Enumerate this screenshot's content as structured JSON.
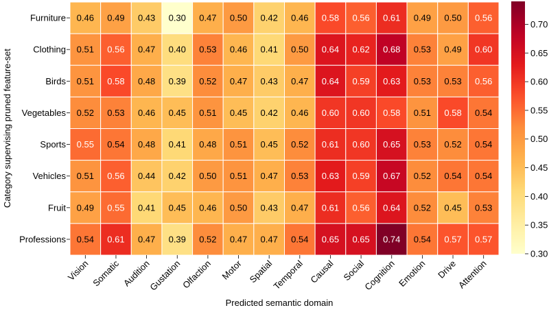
{
  "chart_data": {
    "type": "heatmap",
    "title": "",
    "xlabel": "Predicted semantic domain",
    "ylabel": "Category supervising pruned feature-set",
    "x_categories": [
      "Vision",
      "Somatic",
      "Audition",
      "Gustation",
      "Olfaction",
      "Motor",
      "Spatial",
      "Temporal",
      "Causal",
      "Social",
      "Cognition",
      "Emotion",
      "Drive",
      "Attention"
    ],
    "y_categories": [
      "Furniture",
      "Clothing",
      "Birds",
      "Vegetables",
      "Sports",
      "Vehicles",
      "Fruit",
      "Professions"
    ],
    "values": [
      [
        0.46,
        0.49,
        0.43,
        0.3,
        0.47,
        0.5,
        0.42,
        0.46,
        0.58,
        0.56,
        0.61,
        0.49,
        0.5,
        0.56
      ],
      [
        0.51,
        0.56,
        0.47,
        0.4,
        0.53,
        0.46,
        0.41,
        0.5,
        0.64,
        0.62,
        0.68,
        0.53,
        0.49,
        0.6
      ],
      [
        0.51,
        0.58,
        0.48,
        0.39,
        0.52,
        0.47,
        0.43,
        0.47,
        0.64,
        0.59,
        0.63,
        0.53,
        0.53,
        0.56
      ],
      [
        0.52,
        0.53,
        0.46,
        0.45,
        0.51,
        0.45,
        0.42,
        0.46,
        0.6,
        0.6,
        0.58,
        0.51,
        0.58,
        0.54
      ],
      [
        0.55,
        0.54,
        0.48,
        0.41,
        0.48,
        0.51,
        0.45,
        0.52,
        0.61,
        0.6,
        0.65,
        0.53,
        0.52,
        0.54
      ],
      [
        0.51,
        0.56,
        0.44,
        0.42,
        0.5,
        0.51,
        0.47,
        0.53,
        0.63,
        0.59,
        0.67,
        0.52,
        0.54,
        0.54
      ],
      [
        0.49,
        0.55,
        0.41,
        0.45,
        0.46,
        0.5,
        0.43,
        0.47,
        0.61,
        0.56,
        0.64,
        0.52,
        0.45,
        0.53
      ],
      [
        0.54,
        0.61,
        0.47,
        0.39,
        0.52,
        0.47,
        0.47,
        0.54,
        0.65,
        0.65,
        0.74,
        0.54,
        0.57,
        0.57
      ]
    ],
    "value_format": "0.00",
    "colormap": "YlOrRd",
    "colorbar": {
      "vmin": 0.3,
      "vmax": 0.74,
      "ticks": [
        0.3,
        0.35,
        0.4,
        0.45,
        0.5,
        0.55,
        0.6,
        0.65,
        0.7
      ],
      "tick_labels": [
        "0.30",
        "0.35",
        "0.40",
        "0.45",
        "0.50",
        "0.55",
        "0.60",
        "0.65",
        "0.70"
      ]
    }
  }
}
